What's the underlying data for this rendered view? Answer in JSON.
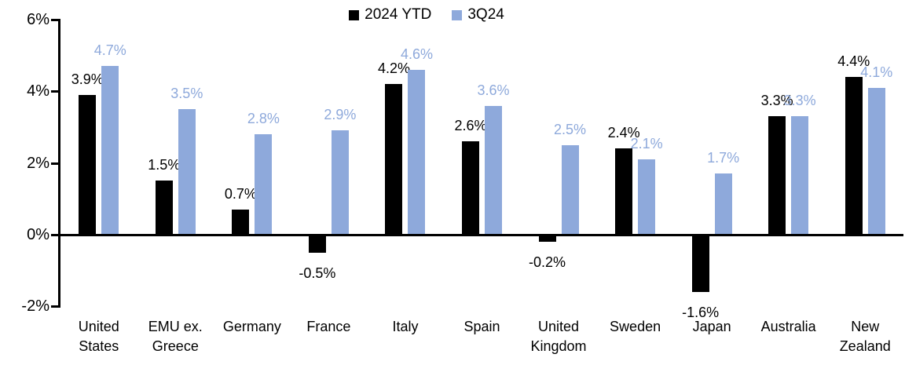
{
  "chart_data": {
    "type": "bar",
    "title": "",
    "categories": [
      "United States",
      "EMU ex. Greece",
      "Germany",
      "France",
      "Italy",
      "Spain",
      "United Kingdom",
      "Sweden",
      "Japan",
      "Australia",
      "New Zealand"
    ],
    "series": [
      {
        "name": "2024 YTD",
        "color": "#000000",
        "label_color": "#000000",
        "values": [
          3.9,
          1.5,
          0.7,
          -0.5,
          4.2,
          2.6,
          -0.2,
          2.4,
          -1.6,
          3.3,
          4.4
        ],
        "labels": [
          "3.9%",
          "1.5%",
          "0.7%",
          "-0.5%",
          "4.2%",
          "2.6%",
          "-0.2%",
          "2.4%",
          "-1.6%",
          "3.3%",
          "4.4%"
        ]
      },
      {
        "name": "3Q24",
        "color": "#8EA9DB",
        "label_color": "#8EA9DB",
        "values": [
          4.7,
          3.5,
          2.8,
          2.9,
          4.6,
          3.6,
          2.5,
          2.1,
          1.7,
          3.3,
          4.1
        ],
        "labels": [
          "4.7%",
          "3.5%",
          "2.8%",
          "2.9%",
          "4.6%",
          "3.6%",
          "2.5%",
          "2.1%",
          "1.7%",
          "3.3%",
          "4.1%"
        ]
      }
    ],
    "y_axis": {
      "min": -2,
      "max": 6,
      "tick_values": [
        6,
        4,
        2,
        0,
        -2
      ],
      "tick_labels": [
        "6%",
        "4%",
        "2%",
        "0%",
        "-2%"
      ]
    },
    "legend": {
      "position": "top-center"
    },
    "grid": false,
    "axis_color": "#000000",
    "background": "#FFFFFF"
  }
}
